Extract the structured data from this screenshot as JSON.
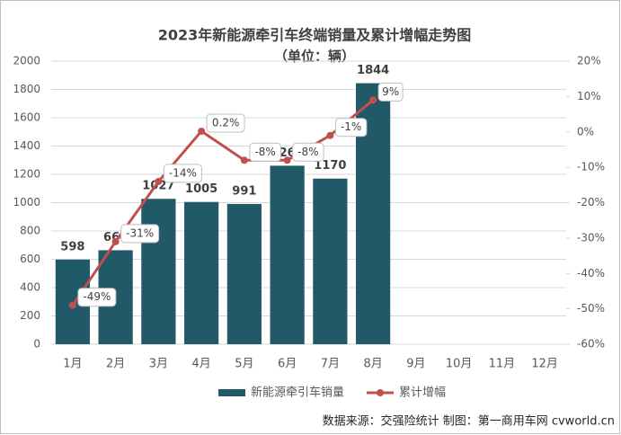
{
  "chart_data": {
    "type": "bar",
    "title": "2023年新能源牵引车终端销量及累计增幅走势图",
    "subtitle": "（单位：辆）",
    "categories": [
      "1月",
      "2月",
      "3月",
      "4月",
      "5月",
      "6月",
      "7月",
      "8月",
      "9月",
      "10月",
      "11月",
      "12月"
    ],
    "series": [
      {
        "name": "新能源牵引车销量",
        "type": "bar",
        "color": "#215968",
        "values": [
          598,
          664,
          1027,
          1005,
          991,
          1261,
          1170,
          1844,
          null,
          null,
          null,
          null
        ]
      },
      {
        "name": "累计增幅",
        "type": "line",
        "axis": "y2",
        "color": "#c0504d",
        "values": [
          -49,
          -31,
          -14,
          0.2,
          -8,
          -8,
          -1,
          9,
          null,
          null,
          null,
          null
        ],
        "value_labels": [
          "-49%",
          "-31%",
          "-14%",
          "0.2%",
          "-8%",
          "-8%",
          "-1%",
          "9%",
          null,
          null,
          null,
          null
        ]
      }
    ],
    "ylim": [
      0,
      2000
    ],
    "yticks": [
      0,
      200,
      400,
      600,
      800,
      1000,
      1200,
      1400,
      1600,
      1800,
      2000
    ],
    "y2lim": [
      -60,
      20
    ],
    "y2ticks": [
      {
        "value": -60,
        "label": "-60%"
      },
      {
        "value": -50,
        "label": "-50%"
      },
      {
        "value": -40,
        "label": "-40%"
      },
      {
        "value": -30,
        "label": "-30%"
      },
      {
        "value": -20,
        "label": "-20%"
      },
      {
        "value": -10,
        "label": "-10%"
      },
      {
        "value": 0,
        "label": "0%"
      },
      {
        "value": 10,
        "label": "10%"
      },
      {
        "value": 20,
        "label": "20%"
      }
    ],
    "grid": true,
    "legend": "bottom",
    "source": "数据来源：交强险统计  制图：第一商用车网 cvworld.cn"
  }
}
